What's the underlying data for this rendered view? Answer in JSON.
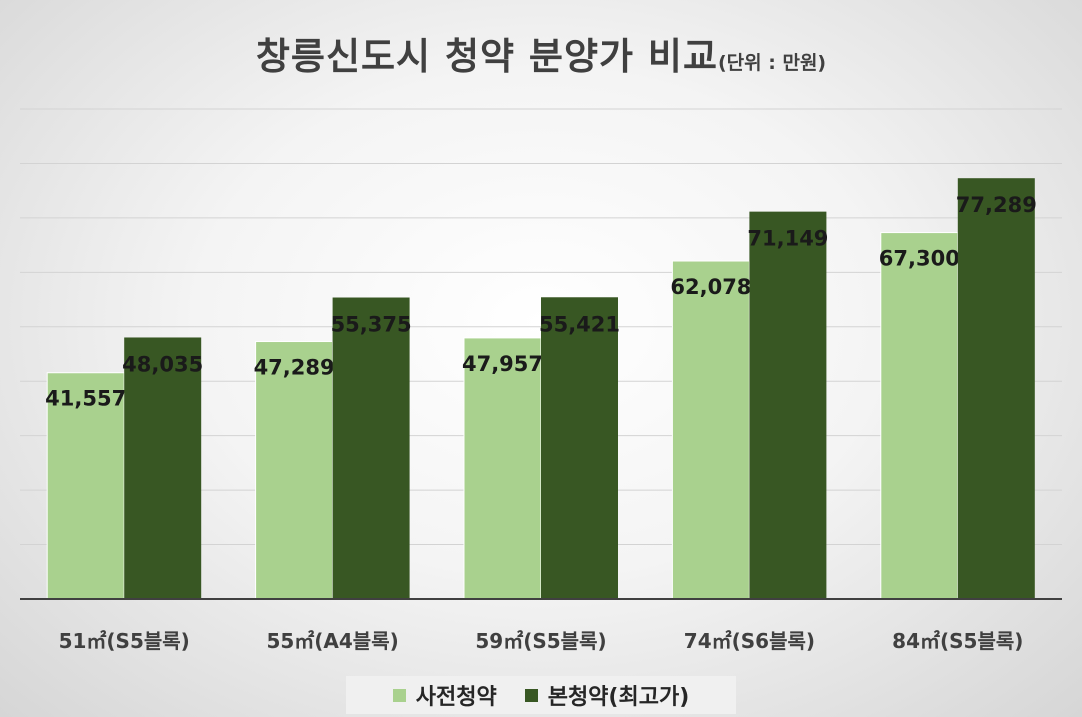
{
  "chart_data": {
    "type": "bar",
    "title": "창릉신도시 청약 분양가 비교",
    "subtitle": "(단위 : 만원)",
    "xlabel": "",
    "ylabel": "",
    "categories": [
      "51㎡(S5블록)",
      "55㎡(A4블록)",
      "59㎡(S5블록)",
      "74㎡(S6블록)",
      "84㎡(S5블록)"
    ],
    "series": [
      {
        "name": "사전청약",
        "color": "#a9d18e",
        "values": [
          41557,
          47289,
          47957,
          62078,
          67300
        ],
        "labels": [
          "41,557",
          "47,289",
          "47,957",
          "62,078",
          "67,300"
        ]
      },
      {
        "name": "본청약(최고가)",
        "color": "#385723",
        "values": [
          48035,
          55375,
          55421,
          71149,
          77289
        ],
        "labels": [
          "48,035",
          "55,375",
          "55,421",
          "71,149",
          "77,289"
        ]
      }
    ],
    "ylim": [
      0,
      90000
    ],
    "grid": true,
    "legend_position": "bottom"
  }
}
